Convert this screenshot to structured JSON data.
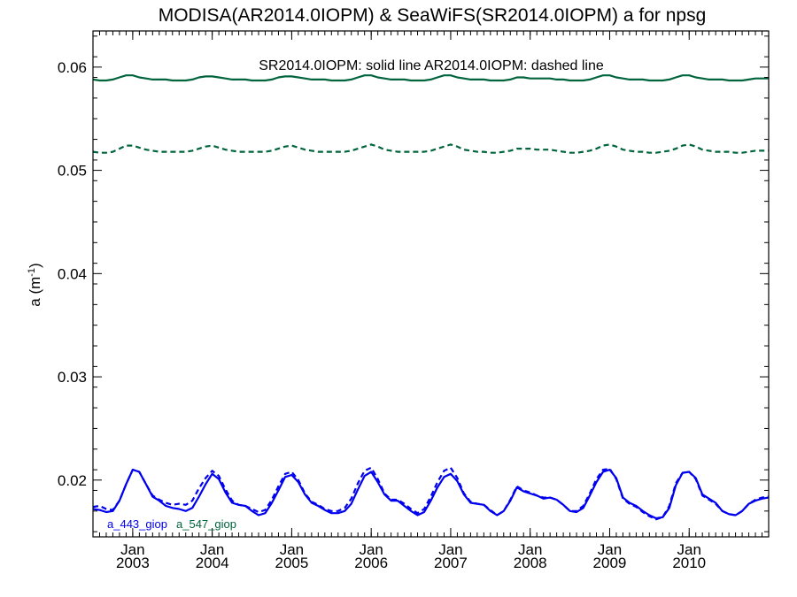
{
  "chart_data": {
    "type": "line",
    "title": "MODISA(AR2014.0IOPM) & SeaWiFS(SR2014.0IOPM)  a for npsg",
    "annotation": "SR2014.0IOPM: solid line   AR2014.0IOPM: dashed line",
    "ylabel_text": "a (m",
    "ylabel_sup": "-1",
    "ylabel_close": ")",
    "ylim": [
      0.0145,
      0.0635
    ],
    "yticks": [
      "0.02",
      "0.03",
      "0.04",
      "0.05",
      "0.06"
    ],
    "ytick_values": [
      0.02,
      0.03,
      0.04,
      0.05,
      0.06
    ],
    "xlim": [
      2002.5,
      2011.0
    ],
    "xticks": [
      {
        "month": "Jan",
        "year": "2003",
        "value": 2003.0
      },
      {
        "month": "Jan",
        "year": "2004",
        "value": 2004.0
      },
      {
        "month": "Jan",
        "year": "2005",
        "value": 2005.0
      },
      {
        "month": "Jan",
        "year": "2006",
        "value": 2006.0
      },
      {
        "month": "Jan",
        "year": "2007",
        "value": 2007.0
      },
      {
        "month": "Jan",
        "year": "2008",
        "value": 2008.0
      },
      {
        "month": "Jan",
        "year": "2009",
        "value": 2009.0
      },
      {
        "month": "Jan",
        "year": "2010",
        "value": 2010.0
      }
    ],
    "legend": [
      {
        "name": "a_443_giop",
        "color": "#0000ee"
      },
      {
        "name": "a_547_giop",
        "color": "#00643c"
      }
    ],
    "series": [
      {
        "name": "a_443_giop",
        "style": "solid",
        "color": "#0000ee",
        "x": [
          2002.5,
          2002.583,
          2002.667,
          2002.75,
          2002.833,
          2002.917,
          2003.0,
          2003.083,
          2003.167,
          2003.25,
          2003.333,
          2003.417,
          2003.5,
          2003.583,
          2003.667,
          2003.75,
          2003.833,
          2003.917,
          2004.0,
          2004.083,
          2004.167,
          2004.25,
          2004.333,
          2004.417,
          2004.5,
          2004.583,
          2004.667,
          2004.75,
          2004.833,
          2004.917,
          2005.0,
          2005.083,
          2005.167,
          2005.25,
          2005.333,
          2005.417,
          2005.5,
          2005.583,
          2005.667,
          2005.75,
          2005.833,
          2005.917,
          2006.0,
          2006.083,
          2006.167,
          2006.25,
          2006.333,
          2006.417,
          2006.5,
          2006.583,
          2006.667,
          2006.75,
          2006.833,
          2006.917,
          2007.0,
          2007.083,
          2007.167,
          2007.25,
          2007.333,
          2007.417,
          2007.5,
          2007.583,
          2007.667,
          2007.75,
          2007.833,
          2007.917,
          2008.0,
          2008.083,
          2008.167,
          2008.25,
          2008.333,
          2008.417,
          2008.5,
          2008.583,
          2008.667,
          2008.75,
          2008.833,
          2008.917,
          2009.0,
          2009.083,
          2009.167,
          2009.25,
          2009.333,
          2009.417,
          2009.5,
          2009.583,
          2009.667,
          2009.75,
          2009.833,
          2009.917,
          2010.0,
          2010.083,
          2010.167,
          2010.25,
          2010.333,
          2010.417,
          2010.5,
          2010.583,
          2010.667,
          2010.75,
          2010.833,
          2010.917,
          2011.0
        ],
        "values": [
          0.0172,
          0.0171,
          0.0169,
          0.017,
          0.018,
          0.0196,
          0.021,
          0.0208,
          0.0196,
          0.0184,
          0.018,
          0.0175,
          0.0173,
          0.0172,
          0.017,
          0.0173,
          0.0184,
          0.0196,
          0.0206,
          0.0201,
          0.0188,
          0.0178,
          0.0176,
          0.0175,
          0.017,
          0.0166,
          0.0168,
          0.0178,
          0.019,
          0.0203,
          0.0205,
          0.0198,
          0.0186,
          0.0178,
          0.0175,
          0.0171,
          0.0168,
          0.0168,
          0.017,
          0.0177,
          0.0191,
          0.0204,
          0.0208,
          0.0198,
          0.0186,
          0.018,
          0.018,
          0.0175,
          0.017,
          0.0166,
          0.0169,
          0.018,
          0.0193,
          0.0203,
          0.0206,
          0.0199,
          0.0186,
          0.0178,
          0.0177,
          0.0176,
          0.017,
          0.0166,
          0.017,
          0.018,
          0.0193,
          0.0189,
          0.0187,
          0.0185,
          0.0182,
          0.0183,
          0.0181,
          0.0176,
          0.017,
          0.0169,
          0.0173,
          0.0185,
          0.0198,
          0.0208,
          0.021,
          0.0202,
          0.0183,
          0.0178,
          0.0175,
          0.017,
          0.0166,
          0.0163,
          0.0164,
          0.0173,
          0.0195,
          0.0207,
          0.0208,
          0.0202,
          0.0186,
          0.0182,
          0.0178,
          0.017,
          0.0167,
          0.0166,
          0.017,
          0.0177,
          0.018,
          0.0182,
          0.0183
        ]
      },
      {
        "name": "a_443_giop",
        "style": "dashed",
        "color": "#0000ee",
        "x": [
          2002.5,
          2002.583,
          2002.667,
          2002.75,
          2002.833,
          2002.917,
          2003.0,
          2003.083,
          2003.167,
          2003.25,
          2003.333,
          2003.417,
          2003.5,
          2003.583,
          2003.667,
          2003.75,
          2003.833,
          2003.917,
          2004.0,
          2004.083,
          2004.167,
          2004.25,
          2004.333,
          2004.417,
          2004.5,
          2004.583,
          2004.667,
          2004.75,
          2004.833,
          2004.917,
          2005.0,
          2005.083,
          2005.167,
          2005.25,
          2005.333,
          2005.417,
          2005.5,
          2005.583,
          2005.667,
          2005.75,
          2005.833,
          2005.917,
          2006.0,
          2006.083,
          2006.167,
          2006.25,
          2006.333,
          2006.417,
          2006.5,
          2006.583,
          2006.667,
          2006.75,
          2006.833,
          2006.917,
          2007.0,
          2007.083,
          2007.167,
          2007.25,
          2007.333,
          2007.417,
          2007.5,
          2007.583,
          2007.667,
          2007.75,
          2007.833,
          2007.917,
          2008.0,
          2008.083,
          2008.167,
          2008.25,
          2008.333,
          2008.417,
          2008.5,
          2008.583,
          2008.667,
          2008.75,
          2008.833,
          2008.917,
          2009.0,
          2009.083,
          2009.167,
          2009.25,
          2009.333,
          2009.417,
          2009.5,
          2009.583,
          2009.667,
          2009.75,
          2009.833,
          2009.917,
          2010.0,
          2010.083,
          2010.167,
          2010.25,
          2010.333,
          2010.417,
          2010.5,
          2010.583,
          2010.667,
          2010.75,
          2010.833,
          2010.917,
          2011.0
        ],
        "values": [
          0.0174,
          0.0175,
          0.0172,
          0.0171,
          0.018,
          0.0196,
          0.021,
          0.0208,
          0.0196,
          0.0185,
          0.0181,
          0.0178,
          0.0176,
          0.0177,
          0.0176,
          0.018,
          0.0192,
          0.0202,
          0.0209,
          0.0204,
          0.0191,
          0.018,
          0.0176,
          0.0175,
          0.0172,
          0.0169,
          0.0171,
          0.0181,
          0.0194,
          0.0206,
          0.0208,
          0.02,
          0.0187,
          0.0179,
          0.0176,
          0.0172,
          0.017,
          0.017,
          0.0173,
          0.0182,
          0.0197,
          0.0209,
          0.0212,
          0.0201,
          0.0187,
          0.0181,
          0.0181,
          0.0177,
          0.0172,
          0.0168,
          0.0172,
          0.0184,
          0.0198,
          0.0209,
          0.0212,
          0.0202,
          0.0187,
          0.0179,
          0.0177,
          0.0176,
          0.0171,
          0.0166,
          0.017,
          0.0181,
          0.0194,
          0.019,
          0.0188,
          0.0185,
          0.0183,
          0.0183,
          0.0181,
          0.0176,
          0.017,
          0.017,
          0.0175,
          0.0187,
          0.0201,
          0.021,
          0.0211,
          0.0201,
          0.0182,
          0.0177,
          0.0174,
          0.0169,
          0.0165,
          0.0162,
          0.0164,
          0.0175,
          0.0197,
          0.0207,
          0.0208,
          0.0201,
          0.0185,
          0.0181,
          0.0177,
          0.017,
          0.0167,
          0.0166,
          0.017,
          0.0177,
          0.0181,
          0.0183,
          0.0184
        ]
      },
      {
        "name": "a_547_giop",
        "style": "solid",
        "color": "#00643c",
        "x": [
          2002.5,
          2002.583,
          2002.667,
          2002.75,
          2002.833,
          2002.917,
          2003.0,
          2003.083,
          2003.167,
          2003.25,
          2003.333,
          2003.417,
          2003.5,
          2003.583,
          2003.667,
          2003.75,
          2003.833,
          2003.917,
          2004.0,
          2004.083,
          2004.167,
          2004.25,
          2004.333,
          2004.417,
          2004.5,
          2004.583,
          2004.667,
          2004.75,
          2004.833,
          2004.917,
          2005.0,
          2005.083,
          2005.167,
          2005.25,
          2005.333,
          2005.417,
          2005.5,
          2005.583,
          2005.667,
          2005.75,
          2005.833,
          2005.917,
          2006.0,
          2006.083,
          2006.167,
          2006.25,
          2006.333,
          2006.417,
          2006.5,
          2006.583,
          2006.667,
          2006.75,
          2006.833,
          2006.917,
          2007.0,
          2007.083,
          2007.167,
          2007.25,
          2007.333,
          2007.417,
          2007.5,
          2007.583,
          2007.667,
          2007.75,
          2007.833,
          2007.917,
          2008.0,
          2008.083,
          2008.167,
          2008.25,
          2008.333,
          2008.417,
          2008.5,
          2008.583,
          2008.667,
          2008.75,
          2008.833,
          2008.917,
          2009.0,
          2009.083,
          2009.167,
          2009.25,
          2009.333,
          2009.417,
          2009.5,
          2009.583,
          2009.667,
          2009.75,
          2009.833,
          2009.917,
          2010.0,
          2010.083,
          2010.167,
          2010.25,
          2010.333,
          2010.417,
          2010.5,
          2010.583,
          2010.667,
          2010.75,
          2010.833,
          2010.917,
          2011.0
        ],
        "values": [
          0.0588,
          0.0587,
          0.0587,
          0.0588,
          0.059,
          0.0592,
          0.0592,
          0.059,
          0.0589,
          0.0588,
          0.0588,
          0.0588,
          0.0587,
          0.0587,
          0.0587,
          0.0588,
          0.059,
          0.0591,
          0.0591,
          0.059,
          0.0589,
          0.0588,
          0.0588,
          0.0588,
          0.0587,
          0.0587,
          0.0587,
          0.0588,
          0.059,
          0.0591,
          0.0591,
          0.059,
          0.0589,
          0.0588,
          0.0588,
          0.0588,
          0.0587,
          0.0587,
          0.0587,
          0.0588,
          0.059,
          0.0592,
          0.0592,
          0.059,
          0.0589,
          0.0588,
          0.0588,
          0.0588,
          0.0587,
          0.0587,
          0.0587,
          0.0588,
          0.059,
          0.0592,
          0.0592,
          0.059,
          0.0589,
          0.0588,
          0.0588,
          0.0588,
          0.0587,
          0.0587,
          0.0587,
          0.0588,
          0.059,
          0.059,
          0.0589,
          0.0589,
          0.0589,
          0.0589,
          0.0588,
          0.0588,
          0.0587,
          0.0587,
          0.0587,
          0.0588,
          0.059,
          0.0592,
          0.0592,
          0.059,
          0.0589,
          0.0588,
          0.0588,
          0.0588,
          0.0587,
          0.0587,
          0.0587,
          0.0588,
          0.059,
          0.0592,
          0.0592,
          0.059,
          0.0589,
          0.0588,
          0.0588,
          0.0588,
          0.0587,
          0.0587,
          0.0587,
          0.0588,
          0.0589,
          0.0589,
          0.0589
        ]
      },
      {
        "name": "a_547_giop",
        "style": "dashed",
        "color": "#00643c",
        "x": [
          2002.5,
          2002.583,
          2002.667,
          2002.75,
          2002.833,
          2002.917,
          2003.0,
          2003.083,
          2003.167,
          2003.25,
          2003.333,
          2003.417,
          2003.5,
          2003.583,
          2003.667,
          2003.75,
          2003.833,
          2003.917,
          2004.0,
          2004.083,
          2004.167,
          2004.25,
          2004.333,
          2004.417,
          2004.5,
          2004.583,
          2004.667,
          2004.75,
          2004.833,
          2004.917,
          2005.0,
          2005.083,
          2005.167,
          2005.25,
          2005.333,
          2005.417,
          2005.5,
          2005.583,
          2005.667,
          2005.75,
          2005.833,
          2005.917,
          2006.0,
          2006.083,
          2006.167,
          2006.25,
          2006.333,
          2006.417,
          2006.5,
          2006.583,
          2006.667,
          2006.75,
          2006.833,
          2006.917,
          2007.0,
          2007.083,
          2007.167,
          2007.25,
          2007.333,
          2007.417,
          2007.5,
          2007.583,
          2007.667,
          2007.75,
          2007.833,
          2007.917,
          2008.0,
          2008.083,
          2008.167,
          2008.25,
          2008.333,
          2008.417,
          2008.5,
          2008.583,
          2008.667,
          2008.75,
          2008.833,
          2008.917,
          2009.0,
          2009.083,
          2009.167,
          2009.25,
          2009.333,
          2009.417,
          2009.5,
          2009.583,
          2009.667,
          2009.75,
          2009.833,
          2009.917,
          2010.0,
          2010.083,
          2010.167,
          2010.25,
          2010.333,
          2010.417,
          2010.5,
          2010.583,
          2010.667,
          2010.75,
          2010.833,
          2010.917,
          2011.0
        ],
        "values": [
          0.0518,
          0.0517,
          0.0517,
          0.0518,
          0.0521,
          0.0524,
          0.0524,
          0.0522,
          0.052,
          0.0519,
          0.0518,
          0.0518,
          0.0518,
          0.0518,
          0.0518,
          0.0519,
          0.0521,
          0.0523,
          0.0524,
          0.0522,
          0.052,
          0.0519,
          0.0518,
          0.0518,
          0.0518,
          0.0518,
          0.0518,
          0.0519,
          0.0521,
          0.0523,
          0.0524,
          0.0522,
          0.052,
          0.0519,
          0.0518,
          0.0518,
          0.0518,
          0.0518,
          0.0518,
          0.0519,
          0.0521,
          0.0523,
          0.0525,
          0.0523,
          0.052,
          0.0519,
          0.0518,
          0.0518,
          0.0518,
          0.0518,
          0.0518,
          0.0519,
          0.0521,
          0.0523,
          0.0525,
          0.0523,
          0.052,
          0.0519,
          0.0518,
          0.0518,
          0.0517,
          0.0517,
          0.0518,
          0.0519,
          0.0521,
          0.0521,
          0.0521,
          0.052,
          0.052,
          0.052,
          0.0519,
          0.0518,
          0.0517,
          0.0517,
          0.0518,
          0.0519,
          0.0521,
          0.0524,
          0.0525,
          0.0523,
          0.052,
          0.0519,
          0.0518,
          0.0518,
          0.0517,
          0.0517,
          0.0518,
          0.0519,
          0.0521,
          0.0524,
          0.0525,
          0.0523,
          0.052,
          0.0519,
          0.0518,
          0.0518,
          0.0518,
          0.0517,
          0.0517,
          0.0518,
          0.0519,
          0.0519,
          0.0519
        ]
      }
    ]
  }
}
